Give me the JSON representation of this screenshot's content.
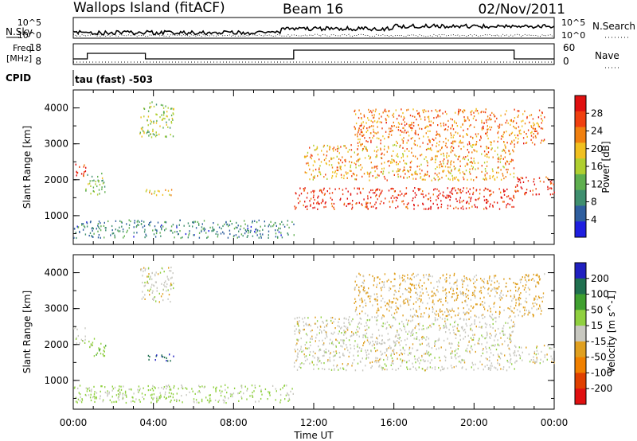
{
  "header": {
    "station": "Wallops Island (fitACF)",
    "beam": "Beam 16",
    "date": "02/Nov/2011"
  },
  "top_panels": {
    "nsky_label": "N.Sky",
    "nsearch_label": "N.Search",
    "noise_ticks": [
      "10^5",
      "10^0"
    ],
    "freq_label_line1": "Freq.",
    "freq_label_line2": "[MHz]",
    "freq_ticks": [
      "18",
      "8"
    ],
    "nave_label": "Nave",
    "nave_ticks": [
      "60",
      "0"
    ],
    "cpid_label": "CPID",
    "cpid_value": "tau (fast) -503"
  },
  "colors": {
    "power_scale": [
      "#1f1fe0",
      "#2f5f9f",
      "#3f8f6f",
      "#5faf4f",
      "#b0cf30",
      "#f0c020",
      "#f08010",
      "#f04010",
      "#e01010"
    ],
    "velocity_scale": [
      "#2020c0",
      "#207050",
      "#40a030",
      "#90d040",
      "#c8c8c0",
      "#e0a020",
      "#f08000",
      "#e04000",
      "#e01010"
    ]
  },
  "chart_data": [
    {
      "type": "heatmap",
      "title": "",
      "xlabel": "Time UT",
      "ylabel": "Slant Range [km]",
      "x_ticks": [
        "00:00",
        "04:00",
        "08:00",
        "12:00",
        "16:00",
        "20:00",
        "00:00"
      ],
      "y_ticks": [
        1000,
        2000,
        3000,
        4000
      ],
      "xlim": [
        0,
        24
      ],
      "ylim": [
        200,
        4500
      ],
      "colorbar": {
        "label": "Power [dB]",
        "ticks": [
          "4",
          "8",
          "12",
          "16",
          "20",
          "24",
          "28"
        ],
        "range": [
          0,
          30
        ]
      },
      "regions": [
        {
          "t": [
            0.0,
            0.6
          ],
          "r": [
            2050,
            2500
          ],
          "value": 26
        },
        {
          "t": [
            0.6,
            1.6
          ],
          "r": [
            1550,
            2200
          ],
          "value": 12
        },
        {
          "t": [
            3.3,
            5.0
          ],
          "r": [
            3200,
            4200
          ],
          "value": 14
        },
        {
          "t": [
            3.6,
            5.0
          ],
          "r": [
            1550,
            1750
          ],
          "value": 18
        },
        {
          "t": [
            0.0,
            11.0
          ],
          "r": [
            400,
            900
          ],
          "value": 8
        },
        {
          "t": [
            11.0,
            22.0
          ],
          "r": [
            1200,
            1800
          ],
          "value": 27
        },
        {
          "t": [
            11.5,
            22.0
          ],
          "r": [
            2000,
            3000
          ],
          "value": 20
        },
        {
          "t": [
            14.0,
            23.5
          ],
          "r": [
            3000,
            4000
          ],
          "value": 22
        },
        {
          "t": [
            22.0,
            24.0
          ],
          "r": [
            1600,
            2100
          ],
          "value": 27
        }
      ]
    },
    {
      "type": "heatmap",
      "title": "",
      "xlabel": "Time UT",
      "ylabel": "Slant Range [km]",
      "x_ticks": [
        "00:00",
        "04:00",
        "08:00",
        "12:00",
        "16:00",
        "20:00",
        "00:00"
      ],
      "y_ticks": [
        1000,
        2000,
        3000,
        4000
      ],
      "xlim": [
        0,
        24
      ],
      "ylim": [
        200,
        4500
      ],
      "colorbar": {
        "label": "Velocity [m s^-1]",
        "ticks": [
          "200",
          "100",
          "50",
          "15",
          "-15",
          "-50",
          "-100",
          "-200"
        ],
        "range": [
          -250,
          250
        ]
      },
      "regions": [
        {
          "t": [
            0.0,
            0.6
          ],
          "r": [
            2050,
            2500
          ],
          "value": 0
        },
        {
          "t": [
            0.6,
            1.6
          ],
          "r": [
            1700,
            2200
          ],
          "value": 60
        },
        {
          "t": [
            3.3,
            5.0
          ],
          "r": [
            3200,
            4200
          ],
          "value": 0
        },
        {
          "t": [
            3.6,
            5.0
          ],
          "r": [
            1550,
            1750
          ],
          "value": 180
        },
        {
          "t": [
            0.0,
            11.0
          ],
          "r": [
            400,
            900
          ],
          "value": 40
        },
        {
          "t": [
            11.0,
            22.0
          ],
          "r": [
            1300,
            2800
          ],
          "value": 0
        },
        {
          "t": [
            14.0,
            23.5
          ],
          "r": [
            2800,
            4000
          ],
          "value": -40
        },
        {
          "t": [
            22.0,
            24.0
          ],
          "r": [
            1500,
            2000
          ],
          "value": 0
        }
      ]
    }
  ]
}
